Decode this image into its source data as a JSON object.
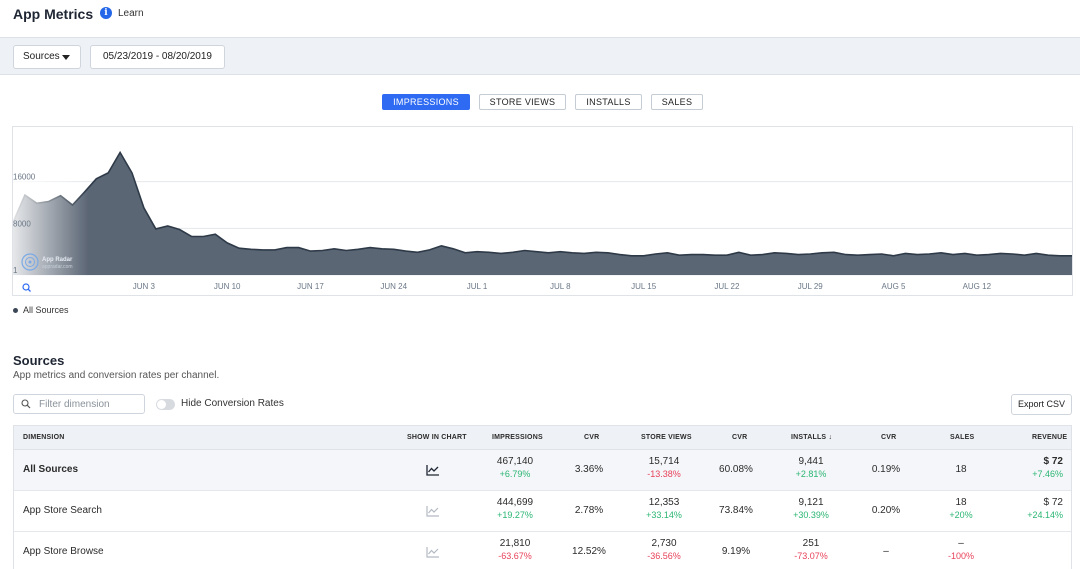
{
  "header": {
    "title": "App Metrics",
    "info_icon": "info-icon",
    "learn_label": "Learn"
  },
  "filters": {
    "sources_label": "Sources",
    "date_range": "05/23/2019 - 08/20/2019"
  },
  "metric_tabs": [
    {
      "label": "IMPRESSIONS",
      "active": true
    },
    {
      "label": "STORE VIEWS",
      "active": false
    },
    {
      "label": "INSTALLS",
      "active": false
    },
    {
      "label": "SALES",
      "active": false
    }
  ],
  "chart_data": {
    "type": "area",
    "x": [
      "May 23",
      "May 24",
      "May 25",
      "May 26",
      "May 27",
      "May 28",
      "May 29",
      "May 30",
      "May 31",
      "Jun 1",
      "Jun 2",
      "Jun 3",
      "Jun 4",
      "Jun 5",
      "Jun 6",
      "Jun 7",
      "Jun 8",
      "Jun 9",
      "Jun 10",
      "Jun 11",
      "Jun 12",
      "Jun 13",
      "Jun 14",
      "Jun 15",
      "Jun 16",
      "Jun 17",
      "Jun 18",
      "Jun 19",
      "Jun 20",
      "Jun 21",
      "Jun 22",
      "Jun 23",
      "Jun 24",
      "Jun 25",
      "Jun 26",
      "Jun 27",
      "Jun 28",
      "Jun 29",
      "Jun 30",
      "Jul 1",
      "Jul 2",
      "Jul 3",
      "Jul 4",
      "Jul 5",
      "Jul 6",
      "Jul 7",
      "Jul 8",
      "Jul 9",
      "Jul 10",
      "Jul 11",
      "Jul 12",
      "Jul 13",
      "Jul 14",
      "Jul 15",
      "Jul 16",
      "Jul 17",
      "Jul 18",
      "Jul 19",
      "Jul 20",
      "Jul 21",
      "Jul 22",
      "Jul 23",
      "Jul 24",
      "Jul 25",
      "Jul 26",
      "Jul 27",
      "Jul 28",
      "Jul 29",
      "Jul 30",
      "Jul 31",
      "Aug 1",
      "Aug 2",
      "Aug 3",
      "Aug 4",
      "Aug 5",
      "Aug 6",
      "Aug 7",
      "Aug 8",
      "Aug 9",
      "Aug 10",
      "Aug 11",
      "Aug 12",
      "Aug 13",
      "Aug 14",
      "Aug 15",
      "Aug 16",
      "Aug 17",
      "Aug 18",
      "Aug 19",
      "Aug 20"
    ],
    "series": [
      {
        "name": "All Sources",
        "values": [
          9000,
          13700,
          12300,
          12600,
          13600,
          12000,
          14200,
          16500,
          17500,
          21000,
          17500,
          11500,
          7900,
          8400,
          7800,
          6600,
          6600,
          7000,
          5500,
          4600,
          4400,
          4300,
          4300,
          4700,
          4700,
          4100,
          4200,
          4500,
          4200,
          4400,
          4700,
          4500,
          4400,
          4100,
          3900,
          4300,
          5000,
          4500,
          3800,
          4000,
          3900,
          3700,
          3900,
          4200,
          4000,
          3800,
          4000,
          3800,
          3700,
          3900,
          3800,
          3500,
          3300,
          3300,
          3600,
          3800,
          3400,
          3500,
          3500,
          3400,
          3400,
          3900,
          3400,
          3500,
          3800,
          3700,
          3500,
          3600,
          3800,
          3900,
          3500,
          3400,
          3500,
          3600,
          3300,
          3700,
          3500,
          3600,
          3800,
          3500,
          3700,
          3400,
          3500,
          3700,
          3600,
          3400,
          3700,
          3400,
          3300,
          3300
        ]
      }
    ],
    "y_tick_labels": [
      "1",
      "8000",
      "16000"
    ],
    "x_tick_labels": [
      "JUN 3",
      "JUN 10",
      "JUN 17",
      "JUN 24",
      "JUL 1",
      "JUL 8",
      "JUL 15",
      "JUL 22",
      "JUL 29",
      "AUG 5",
      "AUG 12"
    ],
    "ylim": [
      0,
      24000
    ],
    "legend": "bottom-left",
    "grid": true
  },
  "chart_watermark": {
    "brand": "App Radar",
    "url": "appradar.com"
  },
  "legend_label": "All Sources",
  "sources_section": {
    "title": "Sources",
    "subtitle": "App metrics and conversion rates per channel.",
    "filter_placeholder": "Filter dimension",
    "hide_cvr_label": "Hide Conversion Rates",
    "export_label": "Export CSV"
  },
  "table": {
    "columns": [
      "DIMENSION",
      "SHOW IN CHART",
      "IMPRESSIONS",
      "CVR",
      "STORE VIEWS",
      "CVR",
      "INSTALLS",
      "CVR",
      "SALES",
      "REVENUE"
    ],
    "sort_indicator": "↓",
    "rows": [
      {
        "dimension": "All Sources",
        "impressions": "467,140",
        "impressions_delta": "+6.79%",
        "cvr1": "3.36%",
        "store_views": "15,714",
        "store_views_delta": "-13.38%",
        "cvr2": "60.08%",
        "installs": "9,441",
        "installs_delta": "+2.81%",
        "cvr3": "0.19%",
        "sales": "18",
        "sales_delta": "",
        "revenue": "$ 72",
        "revenue_delta": "+7.46%"
      },
      {
        "dimension": "App Store Search",
        "impressions": "444,699",
        "impressions_delta": "+19.27%",
        "cvr1": "2.78%",
        "store_views": "12,353",
        "store_views_delta": "+33.14%",
        "cvr2": "73.84%",
        "installs": "9,121",
        "installs_delta": "+30.39%",
        "cvr3": "0.20%",
        "sales": "18",
        "sales_delta": "+20%",
        "revenue": "$ 72",
        "revenue_delta": "+24.14%"
      },
      {
        "dimension": "App Store Browse",
        "impressions": "21,810",
        "impressions_delta": "-63.67%",
        "cvr1": "12.52%",
        "store_views": "2,730",
        "store_views_delta": "-36.56%",
        "cvr2": "9.19%",
        "installs": "251",
        "installs_delta": "-73.07%",
        "cvr3": "–",
        "sales": "–",
        "sales_delta": "-100%",
        "revenue": "",
        "revenue_delta": ""
      }
    ]
  },
  "colors": {
    "accent": "#2f6bf2",
    "area_fill": "#5b6675",
    "area_line": "#2e3a48",
    "positive": "#2bb673",
    "negative": "#e8425a"
  }
}
